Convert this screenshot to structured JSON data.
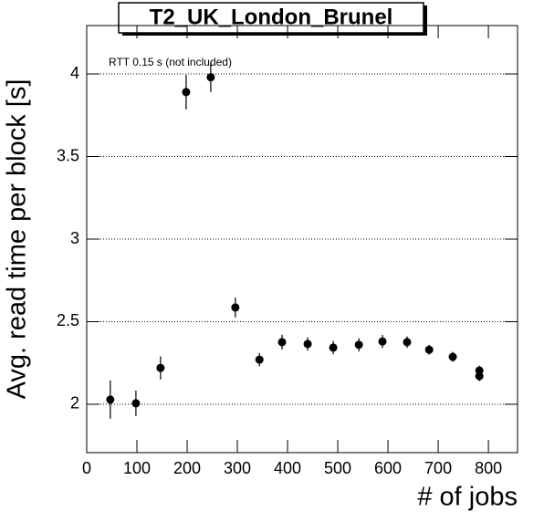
{
  "chart_data": {
    "type": "scatter",
    "title": "T2_UK_London_Brunel",
    "annotation": "RTT 0.15 s (not included)",
    "x_label": "# of jobs",
    "y_label": "Avg. read time per block [s]",
    "xlim": [
      0,
      858
    ],
    "ylim": [
      1.707,
      4.293
    ],
    "xticks": [
      0,
      100,
      200,
      300,
      400,
      500,
      600,
      700,
      800
    ],
    "yticks": [
      2,
      2.5,
      3,
      3.5,
      4
    ],
    "grid": "y",
    "color": "#000000",
    "series": [
      {
        "x": [
          47,
          98,
          147,
          198,
          247,
          296,
          344,
          389,
          440,
          491,
          542,
          589,
          638,
          682,
          729,
          782,
          782
        ],
        "values": [
          2.028,
          2.006,
          2.22,
          3.89,
          3.98,
          2.586,
          2.27,
          2.376,
          2.365,
          2.343,
          2.36,
          2.38,
          2.376,
          2.33,
          2.287,
          2.204,
          2.17
        ],
        "errors": [
          0.116,
          0.077,
          0.07,
          0.105,
          0.09,
          0.06,
          0.04,
          0.045,
          0.04,
          0.04,
          0.04,
          0.04,
          0.035,
          0.03,
          0.03,
          0.03,
          0.03
        ]
      }
    ]
  }
}
